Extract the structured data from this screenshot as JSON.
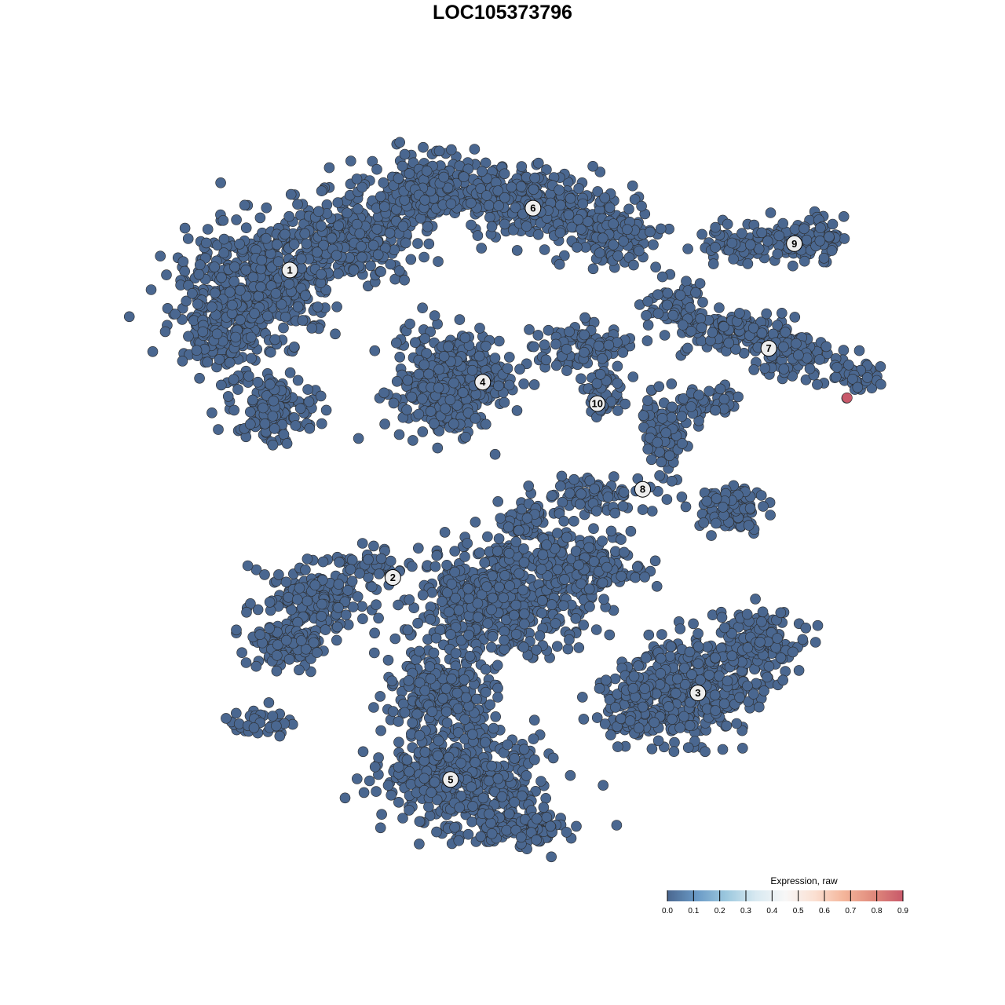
{
  "chart_data": {
    "type": "scatter",
    "title": "LOC105373796",
    "xlabel": "",
    "ylabel": "",
    "axes_visible": false,
    "grid": false,
    "xlim": [
      -45,
      45
    ],
    "ylim": [
      -45,
      45
    ],
    "point_color_default": "#4a6790",
    "point_stroke": "#2b2b2b",
    "clusters": [
      {
        "label": "1",
        "center": [
          -25.8,
          28.2
        ]
      },
      {
        "label": "2",
        "center": [
          -13.3,
          -9.1
        ]
      },
      {
        "label": "3",
        "center": [
          23.7,
          -23.1
        ]
      },
      {
        "label": "4",
        "center": [
          -2.4,
          14.6
        ]
      },
      {
        "label": "5",
        "center": [
          -6.3,
          -33.6
        ]
      },
      {
        "label": "6",
        "center": [
          3.7,
          35.7
        ]
      },
      {
        "label": "7",
        "center": [
          32.3,
          18.7
        ]
      },
      {
        "label": "8",
        "center": [
          17.0,
          1.6
        ]
      },
      {
        "label": "9",
        "center": [
          35.4,
          31.4
        ]
      },
      {
        "label": "10",
        "center": [
          11.5,
          12.0
        ]
      }
    ],
    "baseline_expression": 0.0,
    "highlighted_points": [
      {
        "x": 41.8,
        "y": 12.7,
        "expression": 0.9
      }
    ],
    "legend": {
      "title": "Expression, raw",
      "placement": "bottom-right",
      "min": 0.0,
      "max": 0.9,
      "ticks": [
        "0.0",
        "0.1",
        "0.2",
        "0.3",
        "0.4",
        "0.5",
        "0.6",
        "0.7",
        "0.8",
        "0.9"
      ],
      "colors": [
        "#4a6790",
        "#6a9ac6",
        "#9cc8de",
        "#d8e9f1",
        "#f7f7f7",
        "#fbe0d2",
        "#f4b59a",
        "#e08a7c",
        "#c8596a"
      ]
    }
  }
}
